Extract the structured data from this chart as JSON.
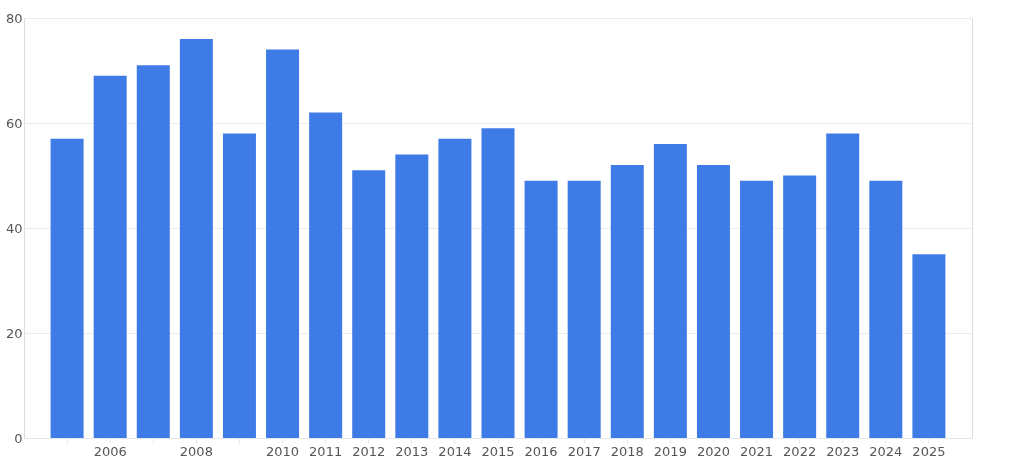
{
  "chart_data": {
    "type": "bar",
    "categories": [
      null,
      "2006",
      null,
      "2008",
      null,
      "2010",
      "2011",
      "2012",
      "2013",
      "2014",
      "2015",
      "2016",
      "2017",
      "2018",
      "2019",
      "2020",
      "2021",
      "2022",
      "2023",
      "2024",
      "2025"
    ],
    "values": [
      57,
      69,
      71,
      76,
      58,
      74,
      62,
      51,
      54,
      57,
      59,
      49,
      49,
      52,
      56,
      52,
      49,
      50,
      58,
      49,
      35
    ],
    "color": "#3f7be6",
    "ylim": [
      0,
      80
    ],
    "yticks": [
      0,
      20,
      40,
      60,
      80
    ],
    "grid": "y"
  }
}
